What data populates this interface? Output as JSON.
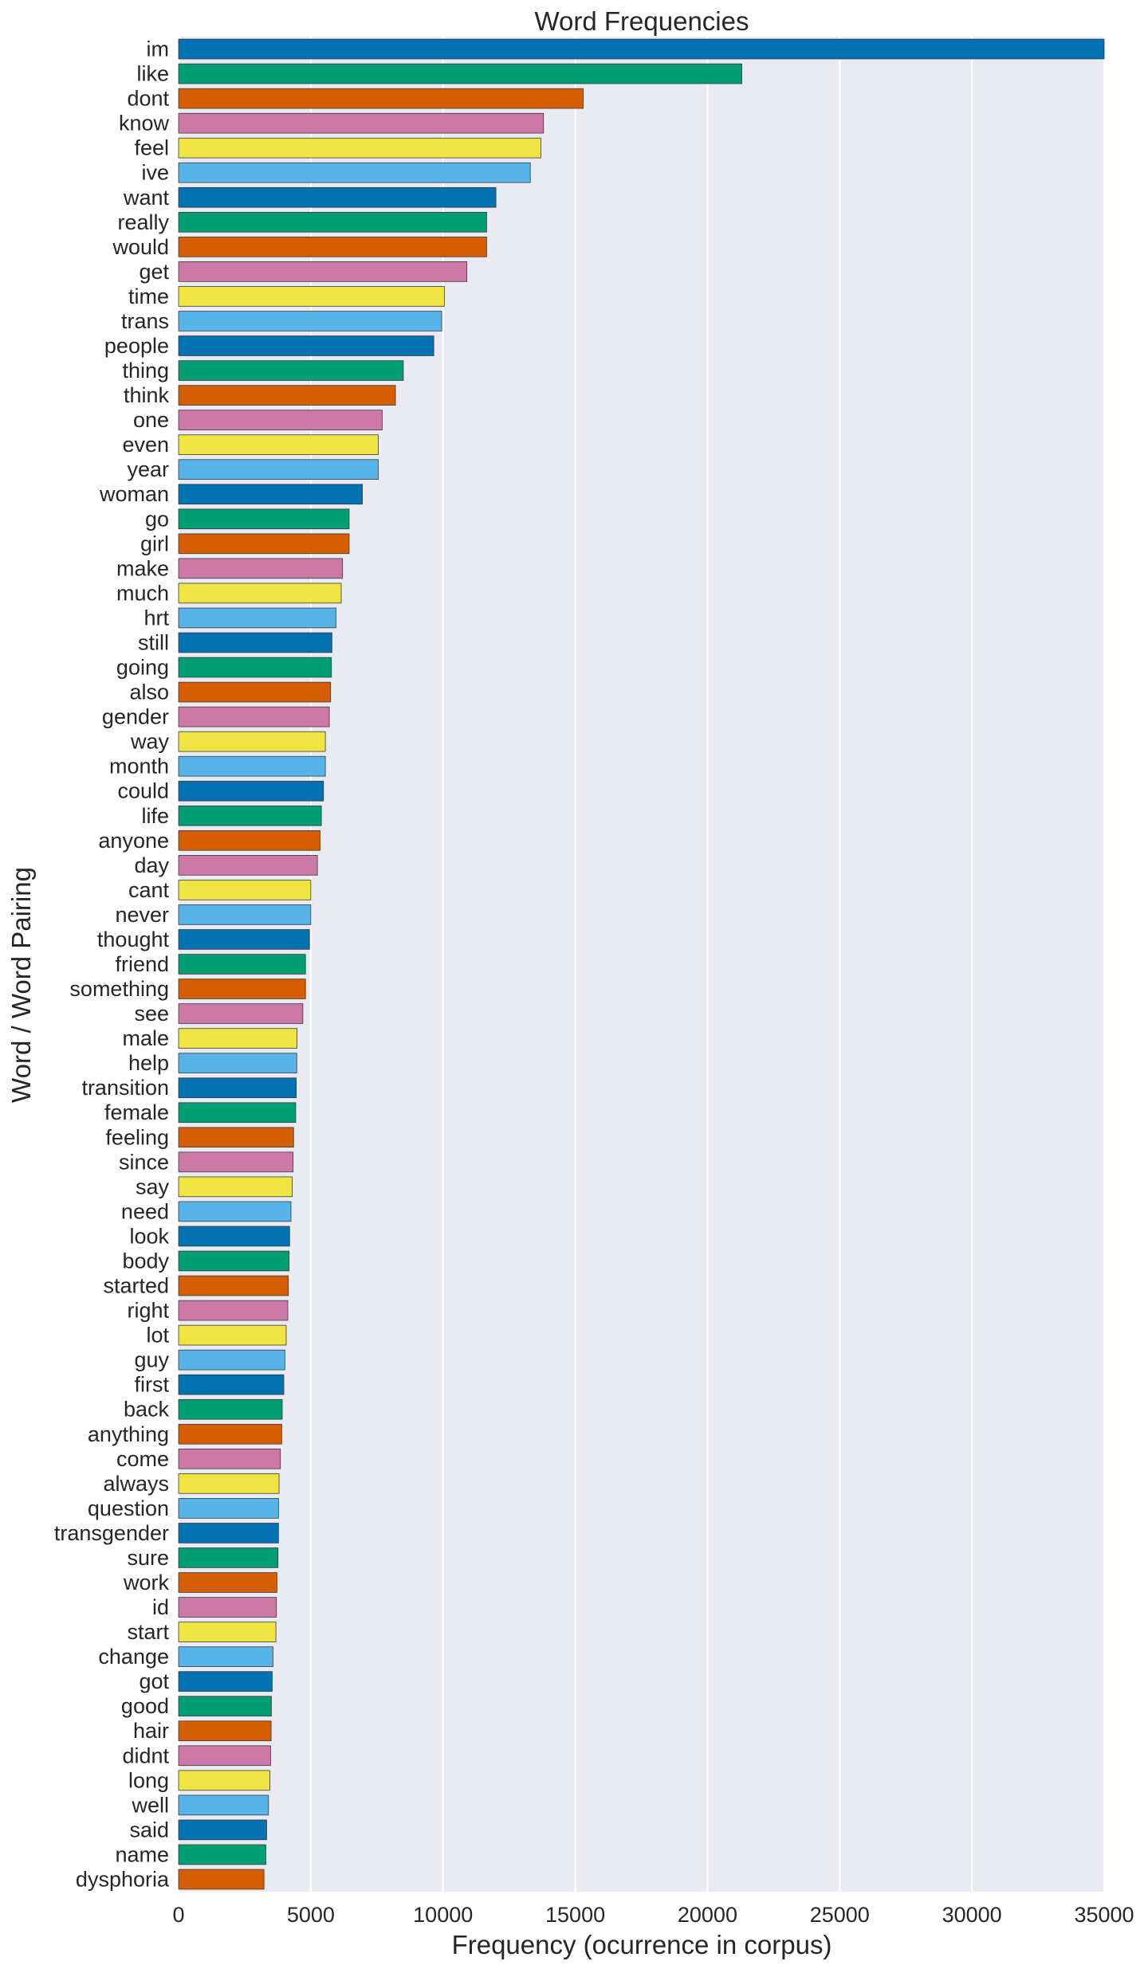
{
  "chart_data": {
    "type": "bar",
    "orientation": "horizontal",
    "title": "Word Frequencies",
    "xlabel": "Frequency (ocurrence in corpus)",
    "ylabel": "Word / Word Pairing",
    "xlim": [
      0,
      35000
    ],
    "xticks": [
      0,
      5000,
      10000,
      15000,
      20000,
      25000,
      30000,
      35000
    ],
    "grid": true,
    "palette": [
      "#0072b2",
      "#009e73",
      "#d55e00",
      "#cc79a7",
      "#f0e442",
      "#56b4e9"
    ],
    "background": "#eaeaf2",
    "categories": [
      "im",
      "like",
      "dont",
      "know",
      "feel",
      "ive",
      "want",
      "really",
      "would",
      "get",
      "time",
      "trans",
      "people",
      "thing",
      "think",
      "one",
      "even",
      "year",
      "woman",
      "go",
      "girl",
      "make",
      "much",
      "hrt",
      "still",
      "going",
      "also",
      "gender",
      "way",
      "month",
      "could",
      "life",
      "anyone",
      "day",
      "cant",
      "never",
      "thought",
      "friend",
      "something",
      "see",
      "male",
      "help",
      "transition",
      "female",
      "feeling",
      "since",
      "say",
      "need",
      "look",
      "body",
      "started",
      "right",
      "lot",
      "guy",
      "first",
      "back",
      "anything",
      "come",
      "always",
      "question",
      "transgender",
      "sure",
      "work",
      "id",
      "start",
      "change",
      "got",
      "good",
      "hair",
      "didnt",
      "long",
      "well",
      "said",
      "name",
      "dysphoria"
    ],
    "values": [
      35000,
      21300,
      15300,
      13800,
      13700,
      13300,
      12000,
      11650,
      11650,
      10900,
      10050,
      9950,
      9650,
      8500,
      8200,
      7700,
      7550,
      7550,
      6950,
      6450,
      6450,
      6200,
      6150,
      5950,
      5800,
      5780,
      5750,
      5700,
      5550,
      5550,
      5480,
      5400,
      5350,
      5250,
      5000,
      5000,
      4950,
      4800,
      4800,
      4700,
      4480,
      4470,
      4450,
      4430,
      4350,
      4330,
      4300,
      4250,
      4200,
      4180,
      4150,
      4130,
      4070,
      4020,
      3980,
      3920,
      3900,
      3850,
      3800,
      3780,
      3780,
      3760,
      3720,
      3700,
      3680,
      3570,
      3540,
      3510,
      3500,
      3480,
      3450,
      3400,
      3330,
      3300,
      3230
    ]
  }
}
